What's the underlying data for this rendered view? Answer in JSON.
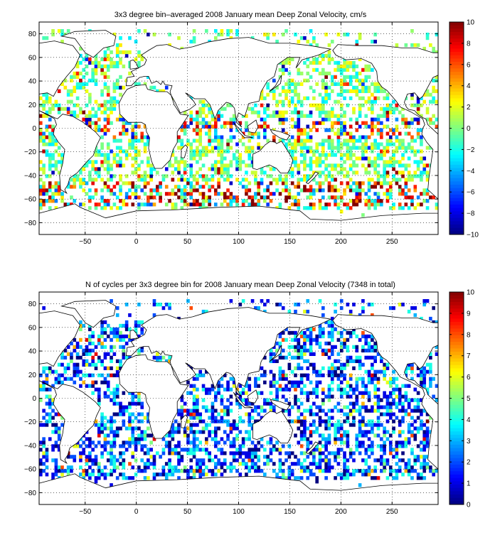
{
  "chart_data": [
    {
      "type": "heatmap",
      "title": "3x3 degree bin–averaged 2008 January mean Deep Zonal Velocity, cm/s",
      "xlabel": "",
      "ylabel": "",
      "xlim": [
        -95,
        295
      ],
      "ylim": [
        -90,
        90
      ],
      "xticks": [
        -50,
        0,
        50,
        100,
        150,
        200,
        250
      ],
      "yticks": [
        80,
        60,
        40,
        20,
        0,
        -20,
        -40,
        -60,
        -80
      ],
      "grid": true,
      "bin_size_deg": 3,
      "colorbar": {
        "min": -10,
        "max": 10,
        "ticks": [
          10,
          8,
          6,
          4,
          2,
          0,
          -2,
          -4,
          -6,
          -8,
          -10
        ],
        "colormap": "jet"
      }
    },
    {
      "type": "heatmap",
      "title": "N of cycles per 3x3 degree bin for 2008 January mean Deep Zonal Velocity (7348 in total)",
      "xlabel": "",
      "ylabel": "",
      "xlim": [
        -95,
        295
      ],
      "ylim": [
        -90,
        90
      ],
      "xticks": [
        -50,
        0,
        50,
        100,
        150,
        200,
        250
      ],
      "yticks": [
        80,
        60,
        40,
        20,
        0,
        -20,
        -40,
        -60,
        -80
      ],
      "grid": true,
      "bin_size_deg": 3,
      "total_cycles": 7348,
      "colorbar": {
        "min": 0,
        "max": 10,
        "ticks": [
          10,
          9,
          8,
          7,
          6,
          5,
          4,
          3,
          2,
          1,
          0
        ],
        "colormap": "jet"
      }
    }
  ]
}
